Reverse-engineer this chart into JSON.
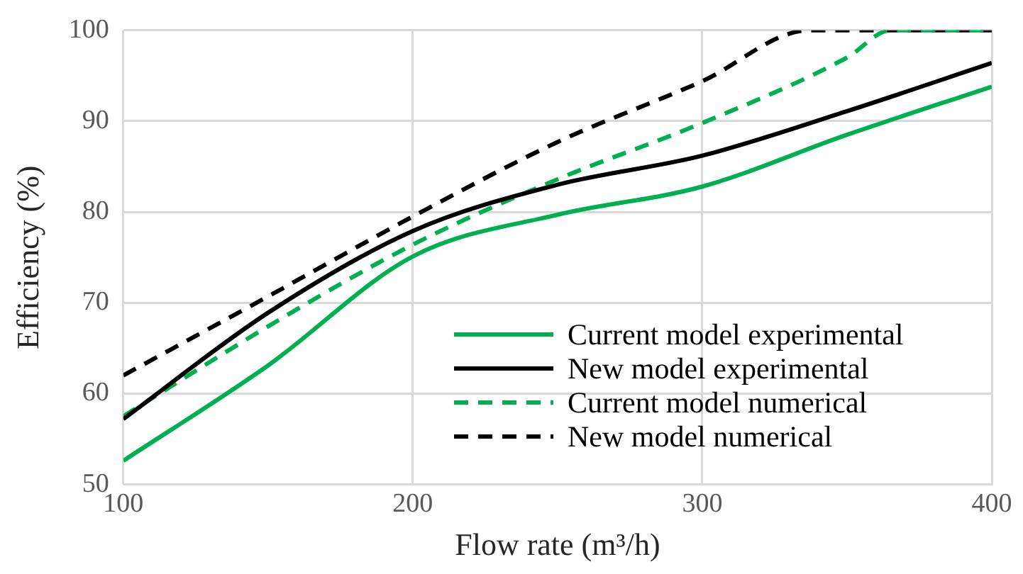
{
  "chart_data": {
    "type": "line",
    "xlabel": "Flow rate (m³/h)",
    "ylabel": "Efficiency (%)",
    "xlim": [
      100,
      400
    ],
    "xticks": [
      100,
      200,
      300,
      400
    ],
    "ylim": [
      50,
      100
    ],
    "yticks": [
      50,
      60,
      70,
      80,
      90,
      100
    ],
    "grid": true,
    "legend": "bottom right",
    "marker": "none",
    "series": [
      {
        "name": "Current model experimental",
        "color": "#00b050",
        "line_style": "solid",
        "x": [
          100,
          150,
          200,
          250,
          300,
          350,
          400
        ],
        "values": [
          52.6,
          63.1,
          75.1,
          79.7,
          82.8,
          88.5,
          93.8
        ]
      },
      {
        "name": "New model experimental",
        "color": "#000000",
        "line_style": "solid",
        "x": [
          100,
          150,
          200,
          250,
          300,
          350,
          400
        ],
        "values": [
          57.2,
          68.9,
          77.9,
          83,
          86.2,
          91.1,
          96.4
        ]
      },
      {
        "name": "Current model numerical",
        "color": "#00b050",
        "line_style": "dashed",
        "x": [
          100,
          150,
          200,
          250,
          300,
          350,
          365,
          400
        ],
        "values": [
          57.5,
          67.4,
          76.4,
          83.6,
          89.8,
          97,
          100,
          100
        ]
      },
      {
        "name": "New model numerical",
        "color": "#000000",
        "line_style": "dashed",
        "x": [
          100,
          150,
          200,
          250,
          300,
          337,
          400
        ],
        "values": [
          62,
          70.7,
          79.5,
          87.7,
          94.4,
          100,
          100
        ]
      }
    ]
  }
}
